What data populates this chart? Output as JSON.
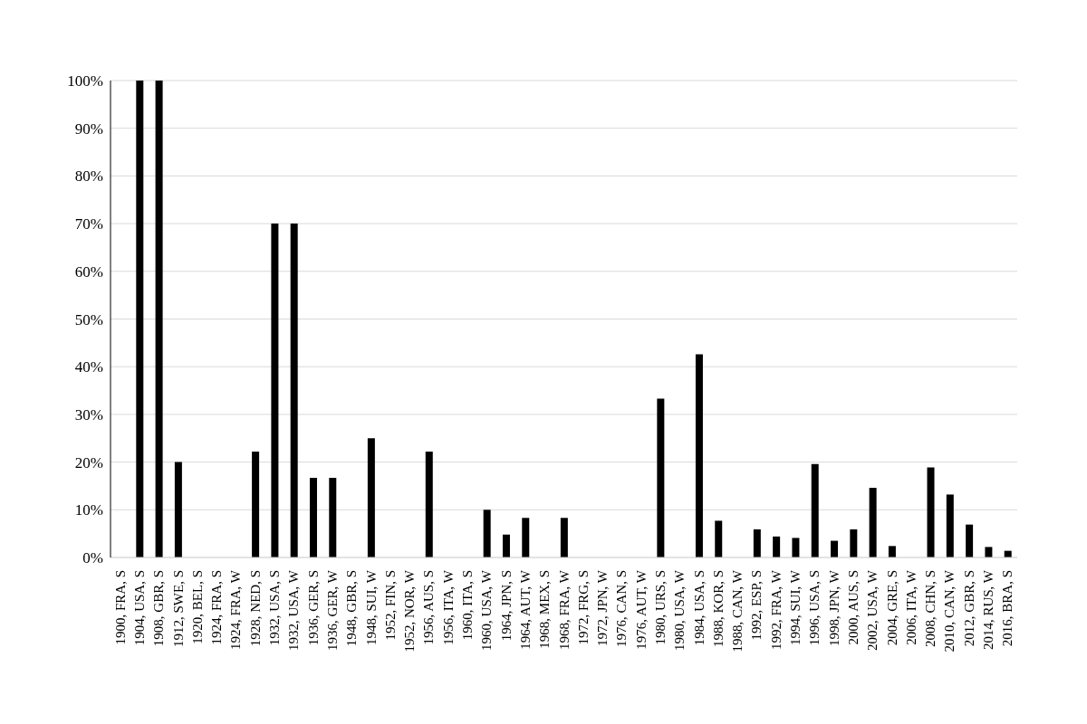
{
  "chart_data": {
    "type": "bar",
    "categories": [
      "1900, FRA, S",
      "1904, USA, S",
      "1908, GBR, S",
      "1912, SWE, S",
      "1920, BEL, S",
      "1924, FRA, S",
      "1924, FRA, W",
      "1928, NED, S",
      "1932, USA, S",
      "1932, USA, W",
      "1936, GER, S",
      "1936, GER, W",
      "1948, GBR, S",
      "1948, SUI, W",
      "1952, FIN, S",
      "1952, NOR, W",
      "1956, AUS, S",
      "1956, ITA, W",
      "1960, ITA, S",
      "1960, USA, W",
      "1964, JPN, S",
      "1964, AUT, W",
      "1968, MEX, S",
      "1968, FRA, W",
      "1972, FRG, S",
      "1972, JPN, W",
      "1976, CAN, S",
      "1976, AUT, W",
      "1980, URS, S",
      "1980, USA, W",
      "1984, USA, S",
      "1988, KOR, S",
      "1988, CAN, W",
      "1992, ESP, S",
      "1992, FRA, W",
      "1994, SUI, W",
      "1996, USA, S",
      "1998, JPN, W",
      "2000, AUS, S",
      "2002, USA, W",
      "2004, GRE, S",
      "2006, ITA, W",
      "2008, CHN, S",
      "2010, CAN, W",
      "2012, GBR, S",
      "2014, RUS, W",
      "2016, BRA, S"
    ],
    "values": [
      0,
      100,
      100,
      20,
      0,
      0,
      0,
      22.2,
      70,
      70,
      16.7,
      16.7,
      0,
      25,
      0,
      0,
      22.2,
      0,
      0,
      10,
      4.8,
      8.3,
      0,
      8.3,
      0,
      0,
      0,
      0,
      33.3,
      0,
      42.6,
      7.7,
      0,
      5.9,
      4.4,
      4.1,
      19.6,
      3.5,
      5.9,
      14.6,
      2.4,
      0,
      18.9,
      13.2,
      6.9,
      2.2,
      1.4
    ],
    "color": "#000000",
    "ylim": [
      0,
      100
    ],
    "yticks": [
      {
        "value": 0,
        "label": "0%"
      },
      {
        "value": 10,
        "label": "10%"
      },
      {
        "value": 20,
        "label": "20%"
      },
      {
        "value": 30,
        "label": "30%"
      },
      {
        "value": 40,
        "label": "40%"
      },
      {
        "value": 50,
        "label": "50%"
      },
      {
        "value": 60,
        "label": "60%"
      },
      {
        "value": 70,
        "label": "70%"
      },
      {
        "value": 80,
        "label": "80%"
      },
      {
        "value": 90,
        "label": "90%"
      },
      {
        "value": 100,
        "label": "100%"
      }
    ],
    "grid": "y"
  }
}
